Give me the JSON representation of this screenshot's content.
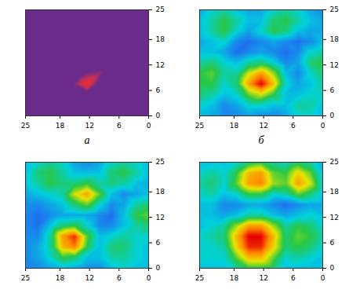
{
  "chart_data": [
    {
      "type": "heatmap",
      "caption": "а",
      "colors": [
        "#6a2b8c",
        "#6a2b8c",
        "#c82e55",
        "#f03028"
      ],
      "xlim": [
        25,
        0
      ],
      "xticks": [
        25,
        18,
        12,
        6,
        0
      ],
      "ylim": [
        0,
        25
      ],
      "yticks": [
        0,
        6,
        12,
        18,
        25
      ],
      "zlim": [
        0,
        1
      ],
      "x": [
        0,
        2.5,
        5,
        7.5,
        10,
        12.5,
        15,
        17.5,
        20,
        22.5,
        25
      ],
      "y": [
        0,
        2.5,
        5,
        7.5,
        10,
        12.5,
        15,
        17.5,
        20,
        22.5,
        25
      ],
      "cells": [
        [
          0,
          0,
          0,
          0,
          0,
          0,
          0,
          0,
          0,
          0,
          0
        ],
        [
          0,
          0,
          0,
          0,
          0,
          0,
          0,
          0,
          0,
          0,
          0
        ],
        [
          0,
          0,
          0,
          0,
          0,
          0.1,
          0.3,
          0,
          0,
          0,
          0
        ],
        [
          0,
          0,
          0,
          0,
          0.2,
          1.0,
          0.4,
          0,
          0,
          0,
          0
        ],
        [
          0,
          0,
          0,
          0,
          0.5,
          0.4,
          0,
          0,
          0,
          0,
          0
        ],
        [
          0,
          0,
          0,
          0,
          0,
          0,
          0,
          0,
          0,
          0,
          0
        ],
        [
          0,
          0,
          0,
          0,
          0,
          0,
          0,
          0,
          0,
          0,
          0
        ],
        [
          0,
          0,
          0,
          0,
          0,
          0,
          0,
          0,
          0,
          0,
          0
        ],
        [
          0,
          0,
          0,
          0,
          0,
          0,
          0,
          0,
          0,
          0,
          0
        ],
        [
          0,
          0,
          0,
          0,
          0,
          0,
          0,
          0,
          0,
          0,
          0
        ],
        [
          0,
          0,
          0,
          0,
          0,
          0,
          0,
          0,
          0,
          0,
          0
        ]
      ]
    },
    {
      "type": "heatmap",
      "caption": "б",
      "colors": [
        "#1428b4",
        "#1e78f0",
        "#00d2dc",
        "#28c846",
        "#e6e600",
        "#ff8c00",
        "#e60000"
      ],
      "xlim": [
        25,
        0
      ],
      "xticks": [
        25,
        18,
        12,
        6,
        0
      ],
      "ylim": [
        0,
        25
      ],
      "yticks": [
        0,
        6,
        12,
        18,
        25
      ],
      "zlim": [
        0,
        1
      ],
      "x": [
        0,
        2.5,
        5,
        7.5,
        10,
        12.5,
        15,
        17.5,
        20,
        22.5,
        25
      ],
      "y": [
        0,
        2.5,
        5,
        7.5,
        10,
        12.5,
        15,
        17.5,
        20,
        22.5,
        25
      ],
      "cells": [
        [
          0.3,
          0.35,
          0.35,
          0.25,
          0.2,
          0.2,
          0.25,
          0.2,
          0.2,
          0.25,
          0.3
        ],
        [
          0.3,
          0.4,
          0.4,
          0.3,
          0.3,
          0.35,
          0.35,
          0.25,
          0.2,
          0.3,
          0.35
        ],
        [
          0.35,
          0.35,
          0.3,
          0.3,
          0.5,
          0.65,
          0.55,
          0.35,
          0.3,
          0.4,
          0.45
        ],
        [
          0.4,
          0.3,
          0.25,
          0.35,
          0.75,
          1.0,
          0.8,
          0.45,
          0.35,
          0.5,
          0.5
        ],
        [
          0.45,
          0.35,
          0.2,
          0.3,
          0.6,
          0.8,
          0.65,
          0.4,
          0.4,
          0.55,
          0.5
        ],
        [
          0.5,
          0.45,
          0.25,
          0.2,
          0.35,
          0.45,
          0.4,
          0.3,
          0.35,
          0.45,
          0.4
        ],
        [
          0.4,
          0.35,
          0.2,
          0.15,
          0.2,
          0.25,
          0.2,
          0.15,
          0.25,
          0.3,
          0.3
        ],
        [
          0.3,
          0.2,
          0.15,
          0.2,
          0.25,
          0.2,
          0.15,
          0.2,
          0.35,
          0.3,
          0.25
        ],
        [
          0.25,
          0.25,
          0.3,
          0.45,
          0.5,
          0.35,
          0.25,
          0.35,
          0.5,
          0.4,
          0.3
        ],
        [
          0.25,
          0.3,
          0.4,
          0.5,
          0.45,
          0.3,
          0.3,
          0.4,
          0.5,
          0.4,
          0.3
        ],
        [
          0.2,
          0.25,
          0.35,
          0.4,
          0.35,
          0.25,
          0.25,
          0.3,
          0.4,
          0.35,
          0.25
        ]
      ]
    },
    {
      "type": "heatmap",
      "colors": [
        "#1428b4",
        "#1e78f0",
        "#00d2dc",
        "#28c846",
        "#e6e600",
        "#ff8c00",
        "#e60000"
      ],
      "xlim": [
        25,
        0
      ],
      "xticks": [
        25,
        18,
        12,
        6,
        0
      ],
      "ylim": [
        0,
        25
      ],
      "yticks": [
        0,
        6,
        12,
        18,
        25
      ],
      "zlim": [
        0,
        1
      ],
      "x": [
        0,
        2.5,
        5,
        7.5,
        10,
        12.5,
        15,
        17.5,
        20,
        22.5,
        25
      ],
      "y": [
        0,
        2.5,
        5,
        7.5,
        10,
        12.5,
        15,
        17.5,
        20,
        22.5,
        25
      ],
      "cells": [
        [
          0.3,
          0.3,
          0.35,
          0.3,
          0.2,
          0.2,
          0.25,
          0.3,
          0.25,
          0.2,
          0.2
        ],
        [
          0.3,
          0.35,
          0.4,
          0.4,
          0.3,
          0.3,
          0.45,
          0.5,
          0.35,
          0.25,
          0.2
        ],
        [
          0.3,
          0.35,
          0.45,
          0.45,
          0.3,
          0.5,
          0.85,
          0.75,
          0.4,
          0.25,
          0.2
        ],
        [
          0.35,
          0.35,
          0.4,
          0.35,
          0.3,
          0.55,
          0.95,
          0.8,
          0.4,
          0.2,
          0.2
        ],
        [
          0.45,
          0.4,
          0.3,
          0.2,
          0.2,
          0.35,
          0.5,
          0.45,
          0.3,
          0.15,
          0.2
        ],
        [
          0.55,
          0.5,
          0.3,
          0.15,
          0.2,
          0.25,
          0.25,
          0.25,
          0.2,
          0.15,
          0.2
        ],
        [
          0.45,
          0.4,
          0.25,
          0.2,
          0.35,
          0.55,
          0.45,
          0.3,
          0.25,
          0.2,
          0.2
        ],
        [
          0.3,
          0.25,
          0.2,
          0.3,
          0.55,
          0.8,
          0.65,
          0.4,
          0.35,
          0.3,
          0.25
        ],
        [
          0.25,
          0.3,
          0.4,
          0.45,
          0.4,
          0.5,
          0.45,
          0.45,
          0.5,
          0.4,
          0.3
        ],
        [
          0.3,
          0.4,
          0.5,
          0.45,
          0.3,
          0.3,
          0.3,
          0.4,
          0.5,
          0.45,
          0.3
        ],
        [
          0.3,
          0.35,
          0.4,
          0.35,
          0.25,
          0.2,
          0.25,
          0.35,
          0.4,
          0.35,
          0.3
        ]
      ]
    },
    {
      "type": "heatmap",
      "colors": [
        "#1428b4",
        "#1e78f0",
        "#00d2dc",
        "#28c846",
        "#e6e600",
        "#ff8c00",
        "#e60000"
      ],
      "xlim": [
        25,
        0
      ],
      "xticks": [
        25,
        18,
        12,
        6,
        0
      ],
      "ylim": [
        0,
        25
      ],
      "yticks": [
        0,
        6,
        12,
        18,
        25
      ],
      "zlim": [
        0,
        1
      ],
      "x": [
        0,
        2.5,
        5,
        7.5,
        10,
        12.5,
        15,
        17.5,
        20,
        22.5,
        25
      ],
      "y": [
        0,
        2.5,
        5,
        7.5,
        10,
        12.5,
        15,
        17.5,
        20,
        22.5,
        25
      ],
      "cells": [
        [
          0.3,
          0.3,
          0.3,
          0.3,
          0.45,
          0.5,
          0.5,
          0.4,
          0.3,
          0.3,
          0.3
        ],
        [
          0.3,
          0.35,
          0.4,
          0.35,
          0.55,
          0.75,
          0.75,
          0.55,
          0.35,
          0.35,
          0.35
        ],
        [
          0.35,
          0.45,
          0.5,
          0.45,
          0.7,
          0.95,
          0.95,
          0.7,
          0.4,
          0.35,
          0.35
        ],
        [
          0.4,
          0.5,
          0.55,
          0.45,
          0.75,
          1.0,
          1.0,
          0.75,
          0.45,
          0.4,
          0.35
        ],
        [
          0.35,
          0.45,
          0.5,
          0.4,
          0.6,
          0.8,
          0.8,
          0.6,
          0.4,
          0.35,
          0.3
        ],
        [
          0.3,
          0.35,
          0.3,
          0.25,
          0.3,
          0.4,
          0.4,
          0.3,
          0.25,
          0.3,
          0.3
        ],
        [
          0.25,
          0.25,
          0.2,
          0.15,
          0.2,
          0.25,
          0.25,
          0.2,
          0.2,
          0.3,
          0.3
        ],
        [
          0.3,
          0.45,
          0.55,
          0.4,
          0.35,
          0.5,
          0.5,
          0.35,
          0.3,
          0.4,
          0.35
        ],
        [
          0.35,
          0.65,
          0.8,
          0.55,
          0.6,
          0.85,
          0.8,
          0.55,
          0.35,
          0.45,
          0.4
        ],
        [
          0.3,
          0.55,
          0.7,
          0.5,
          0.55,
          0.8,
          0.75,
          0.5,
          0.35,
          0.4,
          0.35
        ],
        [
          0.25,
          0.4,
          0.45,
          0.35,
          0.4,
          0.5,
          0.45,
          0.35,
          0.3,
          0.3,
          0.3
        ]
      ]
    }
  ]
}
